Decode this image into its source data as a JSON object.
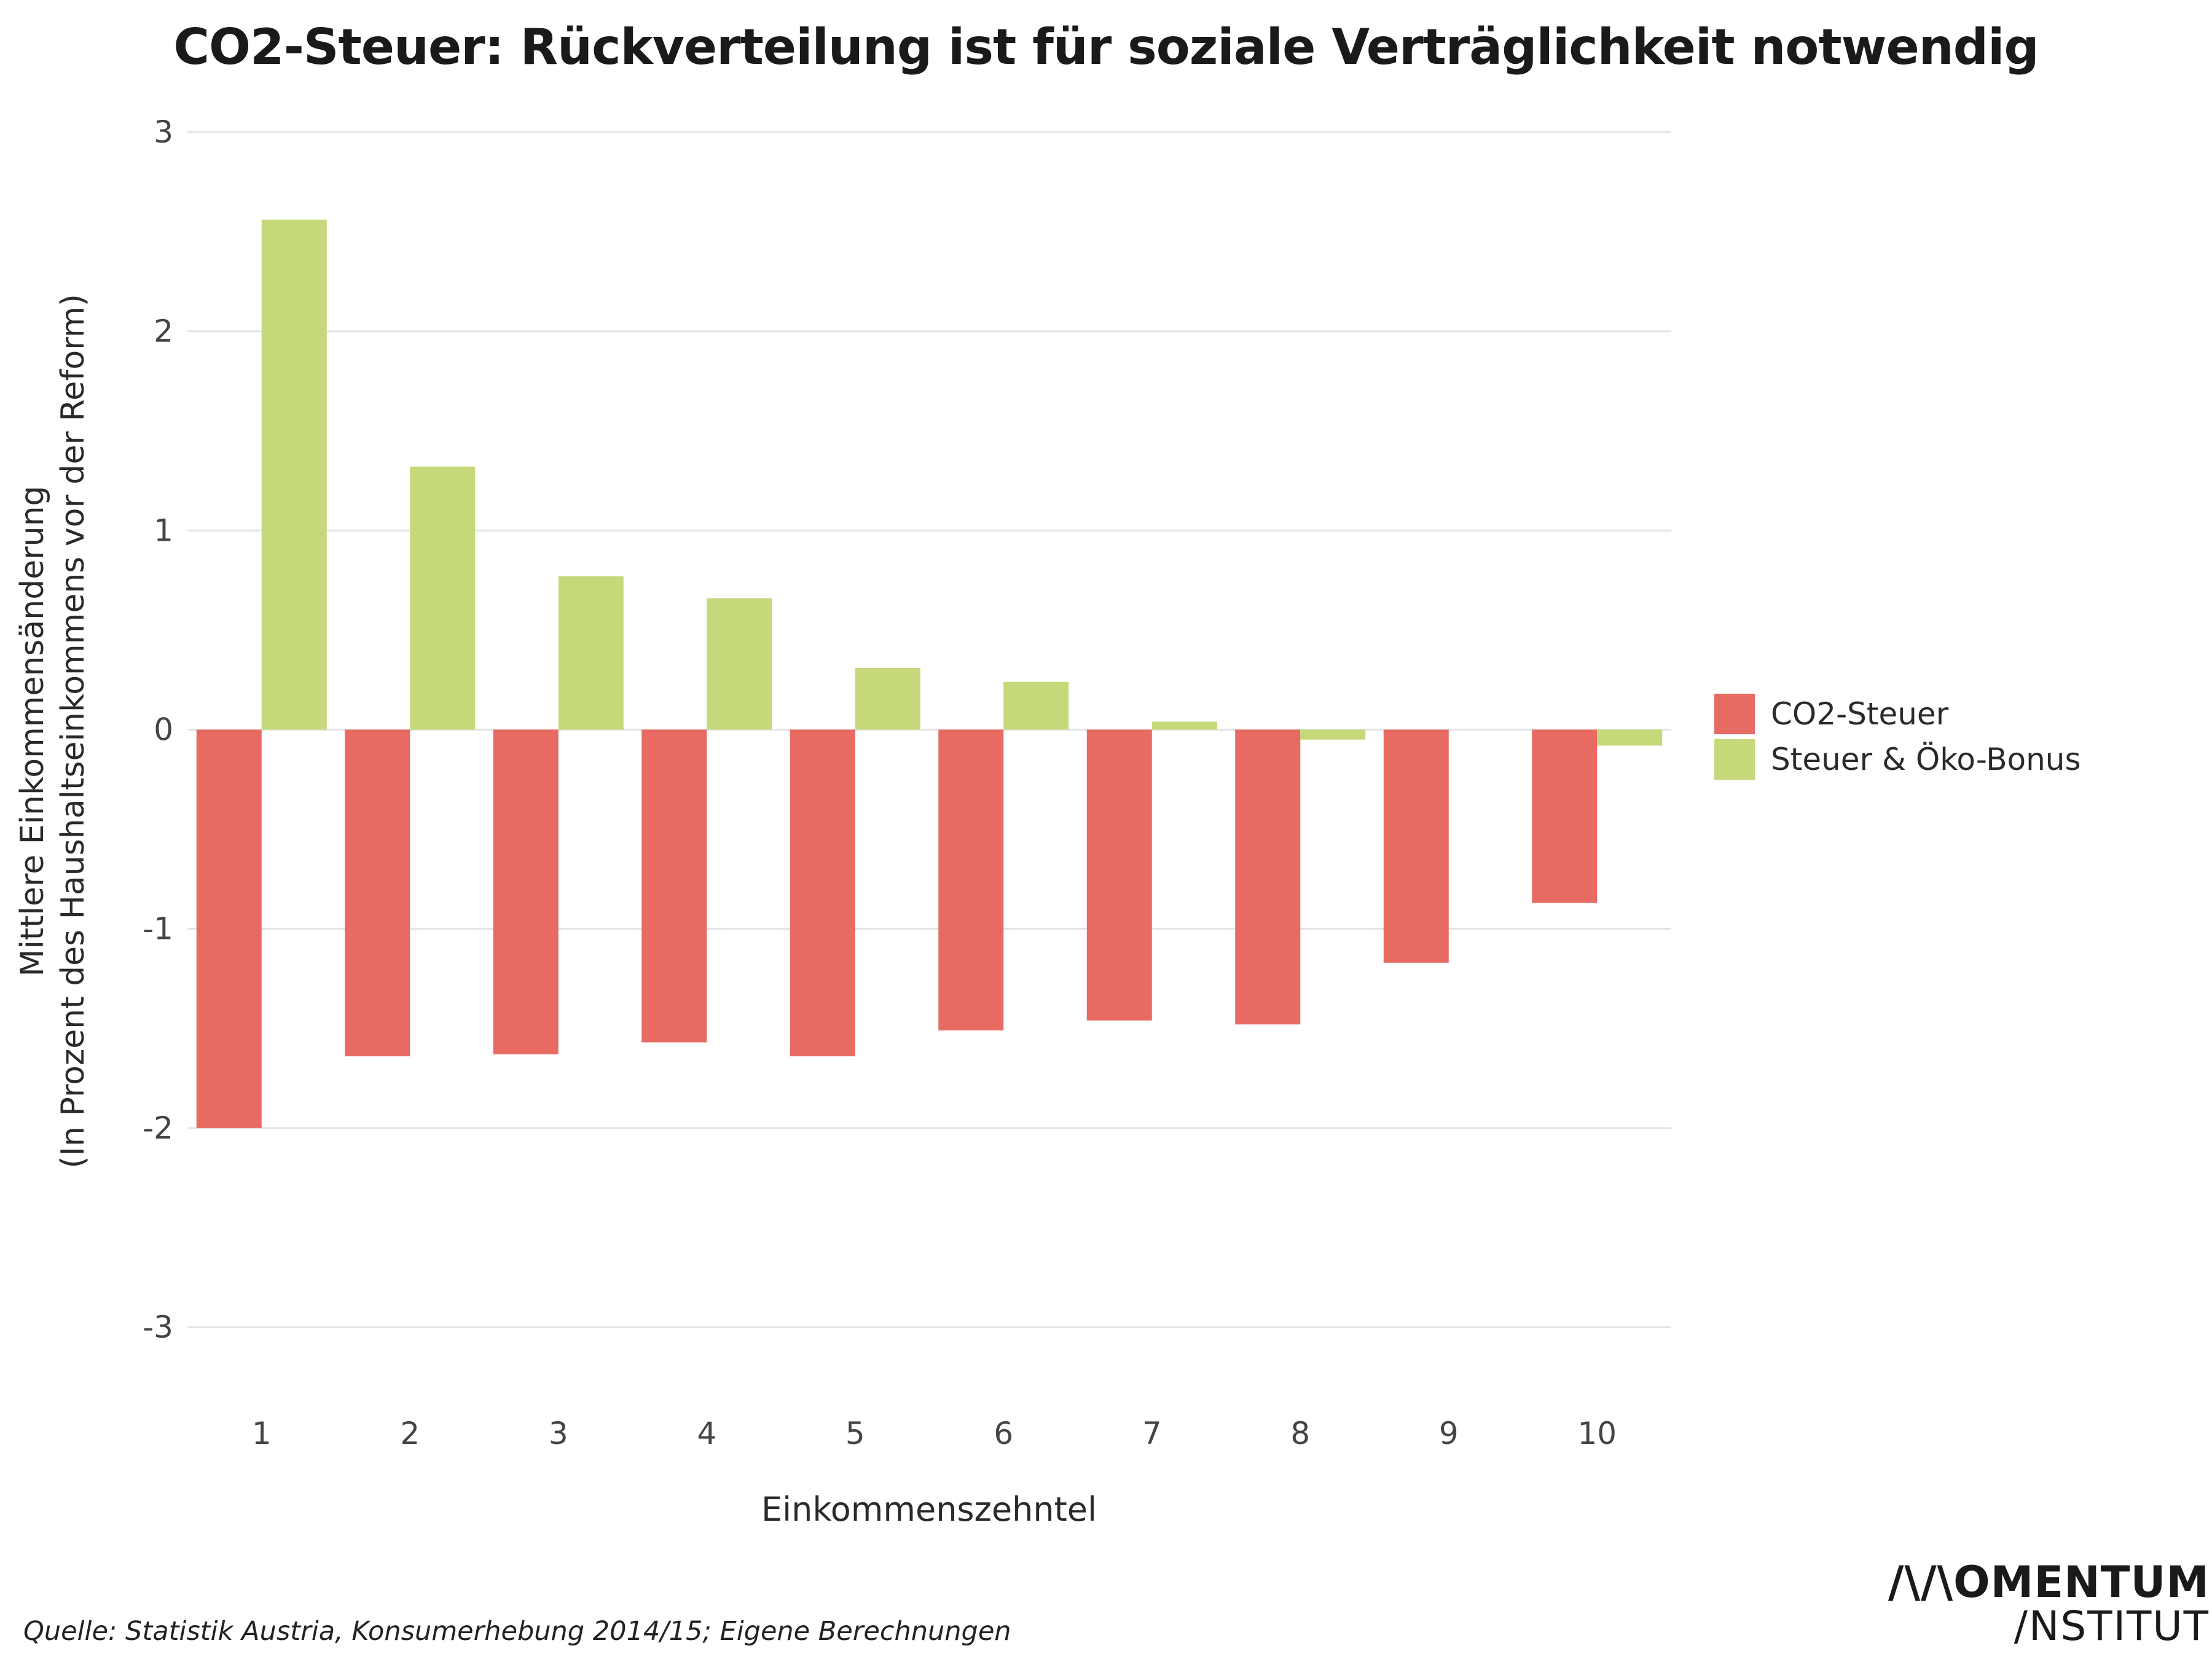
{
  "title": "CO2-Steuer: Rückverteilung ist für soziale Verträglichkeit notwendig",
  "source": "Quelle: Statistik Austria, Konsumerhebung 2014/15; Eigene Berechnungen",
  "logo": {
    "line1": "/\\/\\OMENTUM",
    "line2": "/NSTITUT"
  },
  "colors": {
    "co2": "#e76a63",
    "bonus": "#c5d97a",
    "grid": "#e3e3e3",
    "axis_text": "#444444"
  },
  "chart_data": {
    "type": "bar",
    "categories": [
      "1",
      "2",
      "3",
      "4",
      "5",
      "6",
      "7",
      "8",
      "9",
      "10"
    ],
    "series": [
      {
        "name": "CO2-Steuer",
        "color": "#e76a63",
        "values": [
          -2.0,
          -1.64,
          -1.63,
          -1.57,
          -1.64,
          -1.51,
          -1.46,
          -1.48,
          -1.17,
          -0.87
        ]
      },
      {
        "name": "Steuer & Öko-Bonus",
        "color": "#c5d97a",
        "values": [
          2.56,
          1.32,
          0.77,
          0.66,
          0.31,
          0.24,
          0.04,
          -0.05,
          0.0,
          -0.08
        ]
      }
    ],
    "xlabel": "Einkommenszehntel",
    "ylabel_line1": "Mittlere Einkommensänderung",
    "ylabel_line2": "(In Prozent des Haushaltseinkommens vor der Reform)",
    "yticks": [
      3,
      2,
      1,
      0,
      -1,
      -2,
      -3
    ],
    "ytick_labels": [
      "3",
      "2",
      "1",
      "0",
      "-1",
      "-2",
      "-3"
    ],
    "ylim": [
      -3,
      3
    ],
    "grid": true,
    "legend_position": "right"
  }
}
